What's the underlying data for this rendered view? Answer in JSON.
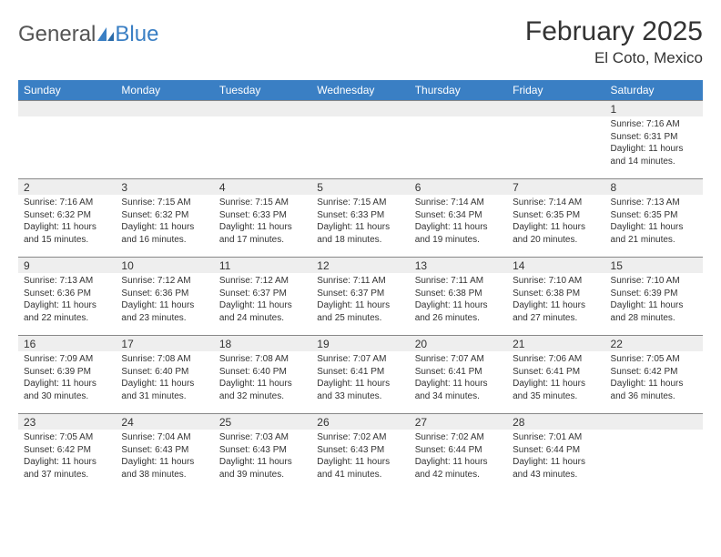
{
  "brand": {
    "part1": "General",
    "part2": "Blue"
  },
  "title": "February 2025",
  "location": "El Coto, Mexico",
  "colors": {
    "header_bg": "#3a7fc4",
    "header_text": "#ffffff",
    "daynum_bg": "#eeeeee",
    "border": "#888888",
    "text": "#333333",
    "logo_blue": "#3a7fc4",
    "background": "#ffffff"
  },
  "typography": {
    "title_fontsize": 30,
    "location_fontsize": 17,
    "weekday_fontsize": 12,
    "daynum_fontsize": 12,
    "body_fontsize": 10
  },
  "layout": {
    "columns": 7,
    "rows": 5,
    "first_day_column": 6
  },
  "weekdays": [
    "Sunday",
    "Monday",
    "Tuesday",
    "Wednesday",
    "Thursday",
    "Friday",
    "Saturday"
  ],
  "days": [
    {
      "n": 1,
      "sunrise": "7:16 AM",
      "sunset": "6:31 PM",
      "daylight": "11 hours and 14 minutes."
    },
    {
      "n": 2,
      "sunrise": "7:16 AM",
      "sunset": "6:32 PM",
      "daylight": "11 hours and 15 minutes."
    },
    {
      "n": 3,
      "sunrise": "7:15 AM",
      "sunset": "6:32 PM",
      "daylight": "11 hours and 16 minutes."
    },
    {
      "n": 4,
      "sunrise": "7:15 AM",
      "sunset": "6:33 PM",
      "daylight": "11 hours and 17 minutes."
    },
    {
      "n": 5,
      "sunrise": "7:15 AM",
      "sunset": "6:33 PM",
      "daylight": "11 hours and 18 minutes."
    },
    {
      "n": 6,
      "sunrise": "7:14 AM",
      "sunset": "6:34 PM",
      "daylight": "11 hours and 19 minutes."
    },
    {
      "n": 7,
      "sunrise": "7:14 AM",
      "sunset": "6:35 PM",
      "daylight": "11 hours and 20 minutes."
    },
    {
      "n": 8,
      "sunrise": "7:13 AM",
      "sunset": "6:35 PM",
      "daylight": "11 hours and 21 minutes."
    },
    {
      "n": 9,
      "sunrise": "7:13 AM",
      "sunset": "6:36 PM",
      "daylight": "11 hours and 22 minutes."
    },
    {
      "n": 10,
      "sunrise": "7:12 AM",
      "sunset": "6:36 PM",
      "daylight": "11 hours and 23 minutes."
    },
    {
      "n": 11,
      "sunrise": "7:12 AM",
      "sunset": "6:37 PM",
      "daylight": "11 hours and 24 minutes."
    },
    {
      "n": 12,
      "sunrise": "7:11 AM",
      "sunset": "6:37 PM",
      "daylight": "11 hours and 25 minutes."
    },
    {
      "n": 13,
      "sunrise": "7:11 AM",
      "sunset": "6:38 PM",
      "daylight": "11 hours and 26 minutes."
    },
    {
      "n": 14,
      "sunrise": "7:10 AM",
      "sunset": "6:38 PM",
      "daylight": "11 hours and 27 minutes."
    },
    {
      "n": 15,
      "sunrise": "7:10 AM",
      "sunset": "6:39 PM",
      "daylight": "11 hours and 28 minutes."
    },
    {
      "n": 16,
      "sunrise": "7:09 AM",
      "sunset": "6:39 PM",
      "daylight": "11 hours and 30 minutes."
    },
    {
      "n": 17,
      "sunrise": "7:08 AM",
      "sunset": "6:40 PM",
      "daylight": "11 hours and 31 minutes."
    },
    {
      "n": 18,
      "sunrise": "7:08 AM",
      "sunset": "6:40 PM",
      "daylight": "11 hours and 32 minutes."
    },
    {
      "n": 19,
      "sunrise": "7:07 AM",
      "sunset": "6:41 PM",
      "daylight": "11 hours and 33 minutes."
    },
    {
      "n": 20,
      "sunrise": "7:07 AM",
      "sunset": "6:41 PM",
      "daylight": "11 hours and 34 minutes."
    },
    {
      "n": 21,
      "sunrise": "7:06 AM",
      "sunset": "6:41 PM",
      "daylight": "11 hours and 35 minutes."
    },
    {
      "n": 22,
      "sunrise": "7:05 AM",
      "sunset": "6:42 PM",
      "daylight": "11 hours and 36 minutes."
    },
    {
      "n": 23,
      "sunrise": "7:05 AM",
      "sunset": "6:42 PM",
      "daylight": "11 hours and 37 minutes."
    },
    {
      "n": 24,
      "sunrise": "7:04 AM",
      "sunset": "6:43 PM",
      "daylight": "11 hours and 38 minutes."
    },
    {
      "n": 25,
      "sunrise": "7:03 AM",
      "sunset": "6:43 PM",
      "daylight": "11 hours and 39 minutes."
    },
    {
      "n": 26,
      "sunrise": "7:02 AM",
      "sunset": "6:43 PM",
      "daylight": "11 hours and 41 minutes."
    },
    {
      "n": 27,
      "sunrise": "7:02 AM",
      "sunset": "6:44 PM",
      "daylight": "11 hours and 42 minutes."
    },
    {
      "n": 28,
      "sunrise": "7:01 AM",
      "sunset": "6:44 PM",
      "daylight": "11 hours and 43 minutes."
    }
  ],
  "labels": {
    "sunrise": "Sunrise:",
    "sunset": "Sunset:",
    "daylight": "Daylight:"
  }
}
